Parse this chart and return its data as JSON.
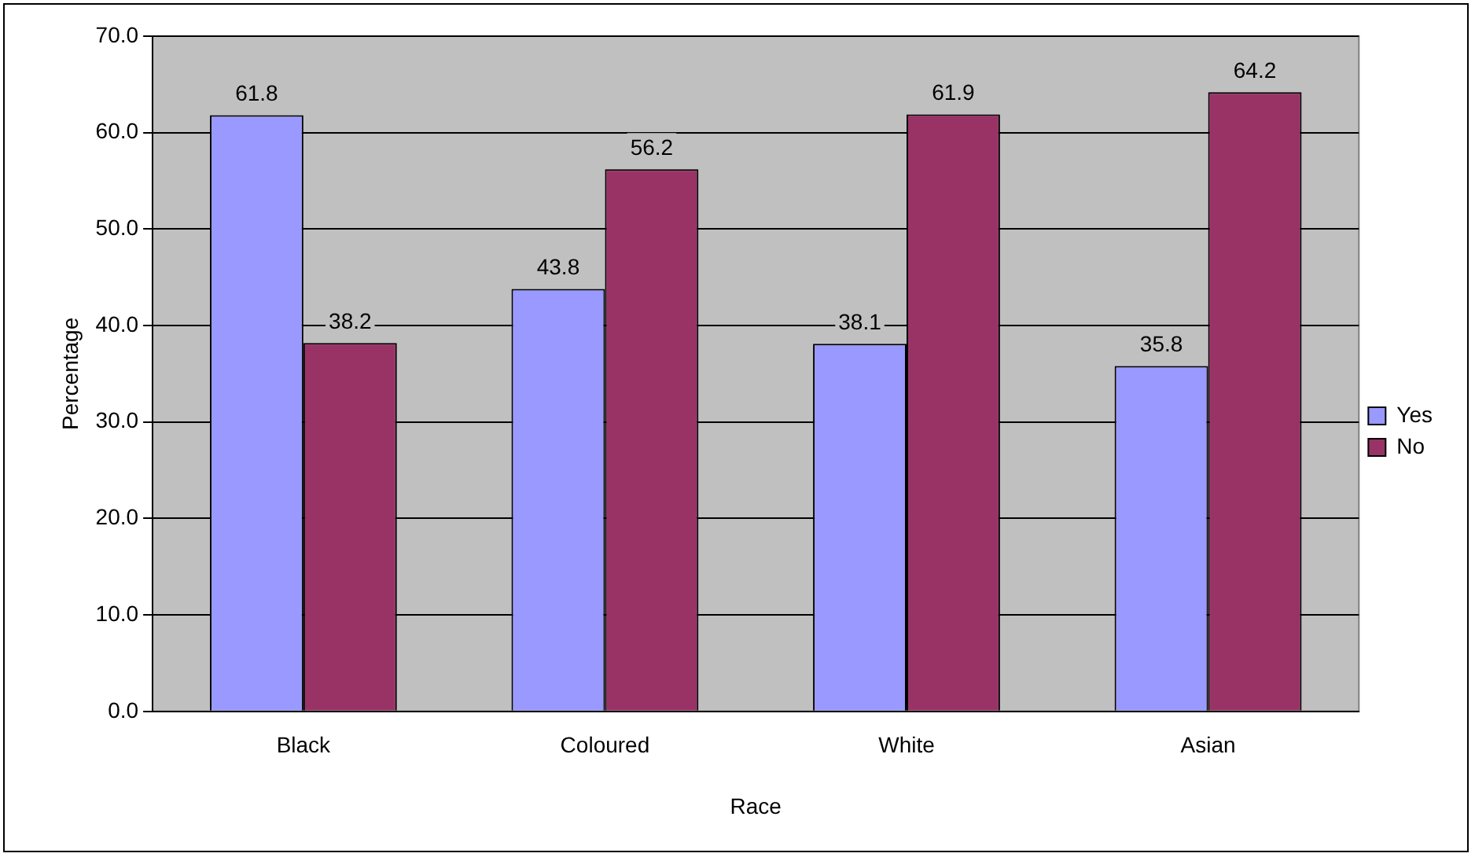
{
  "chart_data": {
    "type": "bar",
    "xlabel": "Race",
    "ylabel": "Percentage",
    "categories": [
      "Black",
      "Coloured",
      "White",
      "Asian"
    ],
    "series": [
      {
        "name": "Yes",
        "color": "#9999ff",
        "values": [
          61.8,
          43.8,
          38.1,
          35.8
        ]
      },
      {
        "name": "No",
        "color": "#993366",
        "values": [
          38.2,
          56.2,
          61.9,
          64.2
        ]
      }
    ],
    "ylim": [
      0,
      70
    ],
    "yticks": [
      {
        "value": 0,
        "label": "0.0"
      },
      {
        "value": 10,
        "label": "10.0"
      },
      {
        "value": 20,
        "label": "20.0"
      },
      {
        "value": 30,
        "label": "30.0"
      },
      {
        "value": 40,
        "label": "40.0"
      },
      {
        "value": 50,
        "label": "50.0"
      },
      {
        "value": 60,
        "label": "60.0"
      },
      {
        "value": 70,
        "label": "70.0"
      }
    ],
    "grid": "y",
    "legend": "right",
    "data_labels": true
  }
}
